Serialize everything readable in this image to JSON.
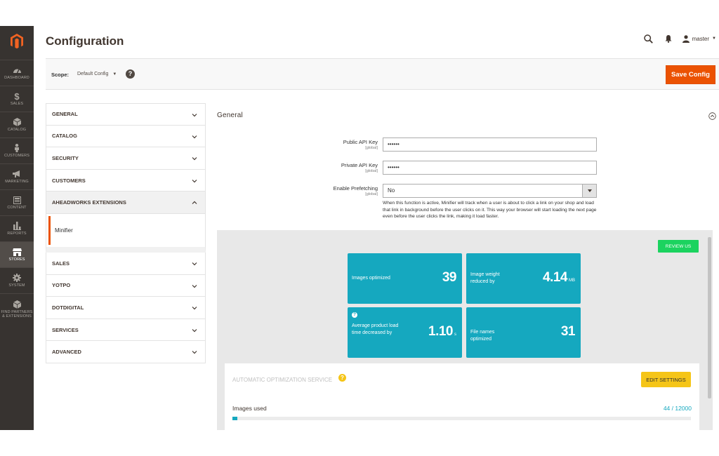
{
  "admin_nav": {
    "items": [
      {
        "label": "DASHBOARD",
        "icon": "dashboard-icon"
      },
      {
        "label": "SALES",
        "icon": "dollar-icon"
      },
      {
        "label": "CATALOG",
        "icon": "cube-icon"
      },
      {
        "label": "CUSTOMERS",
        "icon": "person-icon"
      },
      {
        "label": "MARKETING",
        "icon": "megaphone-icon"
      },
      {
        "label": "CONTENT",
        "icon": "layout-icon"
      },
      {
        "label": "REPORTS",
        "icon": "bar-chart-icon"
      },
      {
        "label": "STORES",
        "icon": "store-icon"
      },
      {
        "label": "SYSTEM",
        "icon": "gear-icon"
      },
      {
        "label": "FIND PARTNERS & EXTENSIONS",
        "icon": "extensions-icon"
      }
    ]
  },
  "header": {
    "title": "Configuration",
    "user": "master"
  },
  "scope": {
    "label": "Scope:",
    "value": "Default Config"
  },
  "save_label": "Save Config",
  "tabs": {
    "general": "GENERAL",
    "catalog": "CATALOG",
    "security": "SECURITY",
    "customers": "CUSTOMERS",
    "aheadworks": "AHEADWORKS EXTENSIONS",
    "minifier": "Minifier",
    "sales": "SALES",
    "yotpo": "YOTPO",
    "dotdigital": "DOTDIGITAL",
    "services": "SERVICES",
    "advanced": "ADVANCED"
  },
  "section": {
    "title": "General",
    "fields": {
      "public_key": {
        "label": "Public API Key",
        "scope": "[global]",
        "value": "••••••"
      },
      "private_key": {
        "label": "Private API Key",
        "scope": "[global]",
        "value": "••••••"
      },
      "prefetch": {
        "label": "Enable Prefetching",
        "scope": "[global]",
        "value": "No"
      }
    },
    "prefetch_note": "When this function is active, Minifier will track when a user is about to click a link on your shop and load that link in background before the user clicks on it. This way your browser will start loading the next page even before the user clicks the link, making it load faster."
  },
  "stats": {
    "review_label": "REVIEW US",
    "images_optimized": {
      "label": "Images optimized",
      "value": "39"
    },
    "weight_reduced": {
      "label": "Image weight reduced by",
      "value": "4.14",
      "unit": "MB"
    },
    "load_time": {
      "label": "Average product load time decreased by",
      "value": "1.10",
      "unit": "s"
    },
    "file_names": {
      "label": "File names optimized",
      "value": "31"
    }
  },
  "service": {
    "title": "AUTOMATIC OPTIMIZATION SERVICE",
    "edit_label": "EDIT SETTINGS",
    "usage_label": "Images used",
    "usage_count": "44 / 12000",
    "usage_fraction": 0.0037
  },
  "colors": {
    "accent": "#eb5202",
    "stat_teal": "#15a8bf",
    "review_green": "#1bd35f",
    "edit_yellow": "#f5c518",
    "nav_bg": "#373330"
  }
}
